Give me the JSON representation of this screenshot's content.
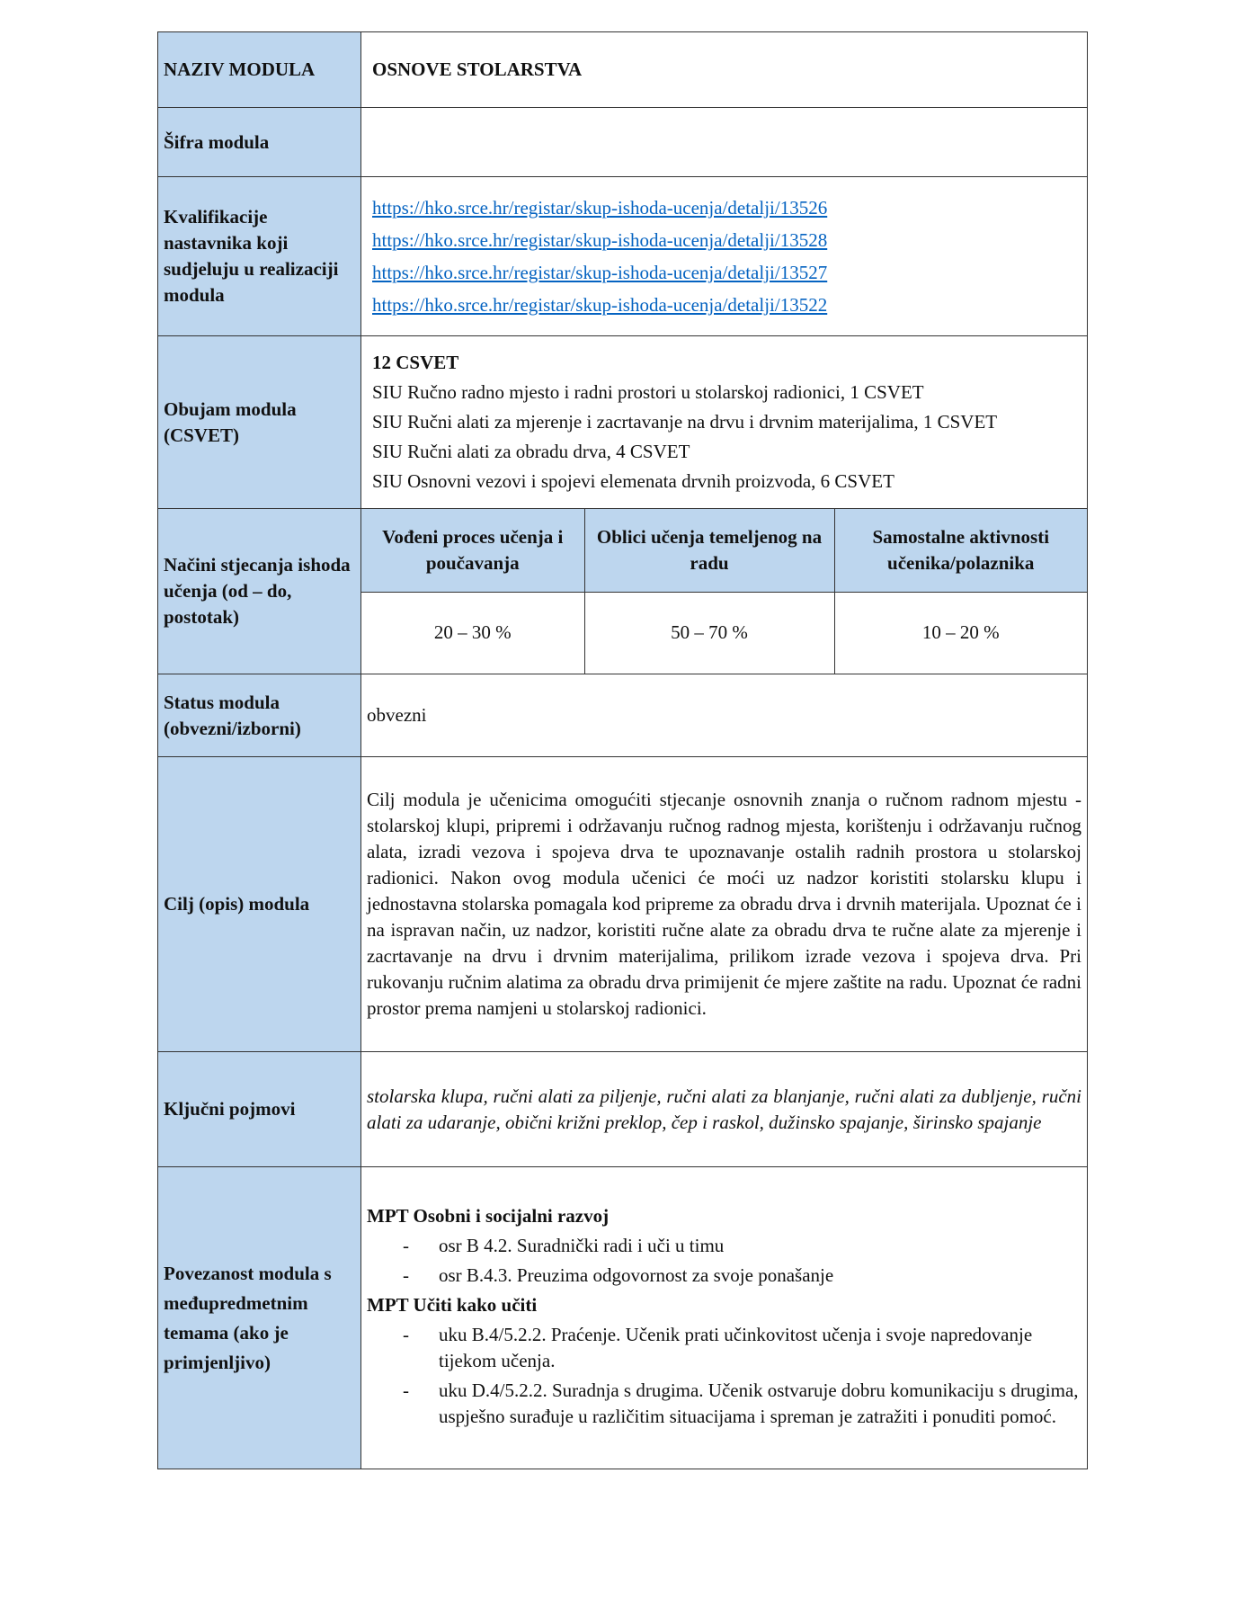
{
  "rows": {
    "naziv": {
      "label": "NAZIV MODULA",
      "value": "OSNOVE STOLARSTVA"
    },
    "sifra": {
      "label": "Šifra modula",
      "value": ""
    },
    "kvalifikacije": {
      "label": "Kvalifikacije nastavnika koji sudjeluju u realizaciji modula",
      "links": [
        "https://hko.srce.hr/registar/skup-ishoda-ucenja/detalji/13526",
        "https://hko.srce.hr/registar/skup-ishoda-ucenja/detalji/13528",
        "https://hko.srce.hr/registar/skup-ishoda-ucenja/detalji/13527",
        "https://hko.srce.hr/registar/skup-ishoda-ucenja/detalji/13522"
      ]
    },
    "obujam": {
      "label": "Obujam modula (CSVET)",
      "total": "12 CSVET",
      "items": [
        "SIU Ručno radno mjesto i radni prostori u stolarskoj radionici, 1 CSVET",
        "SIU Ručni alati za mjerenje i zacrtavanje na drvu i drvnim materijalima, 1 CSVET",
        "SIU Ručni alati za obradu drva, 4 CSVET",
        "SIU Osnovni vezovi i spojevi elemenata drvnih proizvoda, 6 CSVET"
      ]
    },
    "nacini": {
      "label": "Načini stjecanja ishoda učenja (od – do, postotak)",
      "headers": [
        "Vođeni proces učenja i poučavanja",
        "Oblici učenja temeljenog na radu",
        "Samostalne aktivnosti učenika/polaznika"
      ],
      "values": [
        "20 – 30 %",
        "50 – 70 %",
        "10 – 20 %"
      ]
    },
    "status": {
      "label": "Status modula (obvezni/izborni)",
      "value": "obvezni"
    },
    "cilj": {
      "label": "Cilj (opis) modula",
      "value": "Cilj modula je učenicima omogućiti stjecanje osnovnih znanja o ručnom radnom mjestu - stolarskoj klupi, pripremi i održavanju ručnog radnog mjesta, korištenju i održavanju ručnog alata, izradi vezova i spojeva drva te upoznavanje ostalih radnih prostora u stolarskoj radionici. Nakon ovog modula učenici će moći uz nadzor koristiti stolarsku klupu i jednostavna stolarska pomagala kod pripreme za obradu drva i drvnih materijala. Upoznat će i na ispravan način, uz nadzor, koristiti ručne alate za obradu drva te ručne alate za mjerenje i zacrtavanje na drvu i drvnim materijalima, prilikom izrade vezova i spojeva drva. Pri rukovanju ručnim alatima za obradu drva primijenit će mjere zaštite na radu. Upoznat će radni prostor prema namjeni u stolarskoj radionici."
    },
    "pojmovi": {
      "label": "Ključni pojmovi",
      "value": "stolarska klupa, ručni alati za piljenje, ručni alati za blanjanje, ručni alati za dubljenje, ručni alati za udaranje, obični križni preklop, čep i raskol, dužinsko spajanje, širinsko spajanje"
    },
    "povezanost": {
      "label": "Povezanost modula s međupredmetnim temama (ako je primjenljivo)",
      "groups": [
        {
          "title": "MPT Osobni i socijalni razvoj",
          "items": [
            "osr B 4.2. Suradnički radi i uči u timu",
            "osr B.4.3. Preuzima odgovornost za svoje ponašanje"
          ]
        },
        {
          "title": "MPT Učiti kako učiti",
          "items": [
            "uku B.4/5.2.2. Praćenje. Učenik prati učinkovitost učenja i svoje napredovanje tijekom učenja.",
            "uku D.4/5.2.2. Suradnja s drugima. Učenik ostvaruje dobru komunikaciju s drugima, uspješno surađuje u različitim situacijama i spreman je zatražiti i ponuditi pomoć."
          ]
        }
      ]
    }
  }
}
